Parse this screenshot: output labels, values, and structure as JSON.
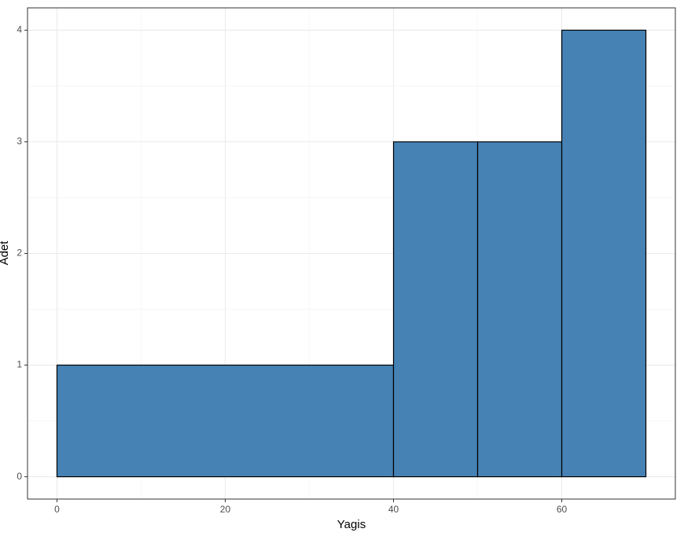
{
  "chart_data": {
    "type": "histogram",
    "x_label": "Yagis",
    "y_label": "Adet",
    "bins": [
      0,
      40,
      50,
      60,
      70
    ],
    "values": [
      1,
      3,
      3,
      4
    ],
    "color": "#4682b4",
    "edgecolor": "#000000",
    "xlim": [
      -3.5,
      73.5
    ],
    "ylim": [
      -0.2,
      4.2
    ],
    "xticks": [
      0,
      20,
      40,
      60
    ],
    "yticks": [
      0,
      1,
      2,
      3,
      4
    ],
    "grid": true
  }
}
